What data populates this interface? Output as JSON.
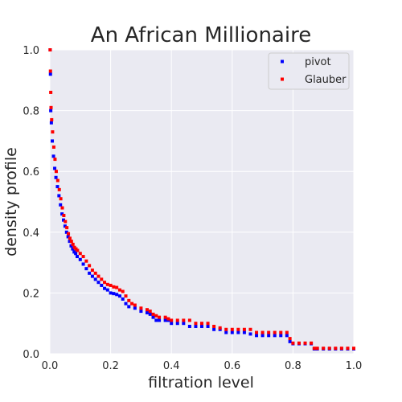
{
  "chart_data": {
    "type": "scatter",
    "title": "An African Millionaire",
    "xlabel": "filtration level",
    "ylabel": "density profile",
    "xlim": [
      0.0,
      1.0
    ],
    "ylim": [
      0.0,
      1.0
    ],
    "xticks": [
      "0.0",
      "0.2",
      "0.4",
      "0.6",
      "0.8",
      "1.0"
    ],
    "yticks": [
      "0.0",
      "0.2",
      "0.4",
      "0.6",
      "0.8",
      "1.0"
    ],
    "grid": true,
    "legend_position": "top-right",
    "colors": {
      "background": "#eaeaf2",
      "grid": "#ffffff"
    },
    "series": [
      {
        "name": "pivot",
        "color": "#0000ff",
        "points": [
          [
            0.001,
            1.0
          ],
          [
            0.002,
            0.92
          ],
          [
            0.003,
            0.8
          ],
          [
            0.005,
            0.76
          ],
          [
            0.008,
            0.7
          ],
          [
            0.012,
            0.65
          ],
          [
            0.016,
            0.61
          ],
          [
            0.02,
            0.58
          ],
          [
            0.025,
            0.55
          ],
          [
            0.03,
            0.52
          ],
          [
            0.035,
            0.49
          ],
          [
            0.04,
            0.46
          ],
          [
            0.045,
            0.44
          ],
          [
            0.05,
            0.42
          ],
          [
            0.055,
            0.4
          ],
          [
            0.06,
            0.385
          ],
          [
            0.065,
            0.37
          ],
          [
            0.07,
            0.355
          ],
          [
            0.075,
            0.345
          ],
          [
            0.08,
            0.335
          ],
          [
            0.085,
            0.33
          ],
          [
            0.09,
            0.32
          ],
          [
            0.1,
            0.31
          ],
          [
            0.11,
            0.295
          ],
          [
            0.12,
            0.28
          ],
          [
            0.13,
            0.265
          ],
          [
            0.14,
            0.255
          ],
          [
            0.15,
            0.245
          ],
          [
            0.16,
            0.235
          ],
          [
            0.17,
            0.225
          ],
          [
            0.18,
            0.215
          ],
          [
            0.19,
            0.21
          ],
          [
            0.2,
            0.2
          ],
          [
            0.21,
            0.198
          ],
          [
            0.22,
            0.195
          ],
          [
            0.23,
            0.19
          ],
          [
            0.24,
            0.18
          ],
          [
            0.25,
            0.165
          ],
          [
            0.26,
            0.155
          ],
          [
            0.28,
            0.15
          ],
          [
            0.3,
            0.14
          ],
          [
            0.32,
            0.135
          ],
          [
            0.33,
            0.13
          ],
          [
            0.34,
            0.12
          ],
          [
            0.35,
            0.11
          ],
          [
            0.36,
            0.11
          ],
          [
            0.38,
            0.11
          ],
          [
            0.39,
            0.11
          ],
          [
            0.4,
            0.1
          ],
          [
            0.42,
            0.1
          ],
          [
            0.44,
            0.1
          ],
          [
            0.46,
            0.09
          ],
          [
            0.48,
            0.09
          ],
          [
            0.5,
            0.09
          ],
          [
            0.52,
            0.09
          ],
          [
            0.54,
            0.08
          ],
          [
            0.56,
            0.08
          ],
          [
            0.58,
            0.07
          ],
          [
            0.6,
            0.07
          ],
          [
            0.62,
            0.07
          ],
          [
            0.64,
            0.07
          ],
          [
            0.66,
            0.065
          ],
          [
            0.68,
            0.06
          ],
          [
            0.7,
            0.06
          ],
          [
            0.72,
            0.06
          ],
          [
            0.74,
            0.06
          ],
          [
            0.76,
            0.06
          ],
          [
            0.78,
            0.06
          ],
          [
            0.79,
            0.04
          ],
          [
            0.8,
            0.033
          ],
          [
            0.82,
            0.033
          ],
          [
            0.84,
            0.033
          ],
          [
            0.86,
            0.033
          ],
          [
            0.87,
            0.016
          ],
          [
            0.88,
            0.016
          ],
          [
            0.9,
            0.016
          ],
          [
            0.92,
            0.016
          ],
          [
            0.94,
            0.016
          ],
          [
            0.96,
            0.016
          ],
          [
            0.98,
            0.016
          ],
          [
            1.0,
            0.016
          ]
        ]
      },
      {
        "name": "Glauber",
        "color": "#ff0000",
        "points": [
          [
            0.001,
            1.0
          ],
          [
            0.002,
            0.93
          ],
          [
            0.003,
            0.86
          ],
          [
            0.004,
            0.81
          ],
          [
            0.006,
            0.77
          ],
          [
            0.009,
            0.73
          ],
          [
            0.013,
            0.68
          ],
          [
            0.017,
            0.64
          ],
          [
            0.021,
            0.6
          ],
          [
            0.026,
            0.57
          ],
          [
            0.031,
            0.54
          ],
          [
            0.036,
            0.51
          ],
          [
            0.041,
            0.48
          ],
          [
            0.046,
            0.455
          ],
          [
            0.051,
            0.435
          ],
          [
            0.056,
            0.415
          ],
          [
            0.061,
            0.395
          ],
          [
            0.066,
            0.38
          ],
          [
            0.071,
            0.37
          ],
          [
            0.076,
            0.36
          ],
          [
            0.081,
            0.35
          ],
          [
            0.086,
            0.345
          ],
          [
            0.091,
            0.34
          ],
          [
            0.1,
            0.33
          ],
          [
            0.11,
            0.32
          ],
          [
            0.12,
            0.305
          ],
          [
            0.13,
            0.29
          ],
          [
            0.14,
            0.275
          ],
          [
            0.15,
            0.265
          ],
          [
            0.16,
            0.255
          ],
          [
            0.17,
            0.245
          ],
          [
            0.18,
            0.235
          ],
          [
            0.19,
            0.228
          ],
          [
            0.2,
            0.225
          ],
          [
            0.21,
            0.22
          ],
          [
            0.22,
            0.218
          ],
          [
            0.23,
            0.21
          ],
          [
            0.24,
            0.205
          ],
          [
            0.25,
            0.19
          ],
          [
            0.26,
            0.175
          ],
          [
            0.27,
            0.165
          ],
          [
            0.28,
            0.16
          ],
          [
            0.3,
            0.15
          ],
          [
            0.32,
            0.145
          ],
          [
            0.33,
            0.14
          ],
          [
            0.34,
            0.13
          ],
          [
            0.35,
            0.125
          ],
          [
            0.36,
            0.12
          ],
          [
            0.38,
            0.12
          ],
          [
            0.39,
            0.115
          ],
          [
            0.4,
            0.11
          ],
          [
            0.42,
            0.11
          ],
          [
            0.44,
            0.11
          ],
          [
            0.46,
            0.11
          ],
          [
            0.48,
            0.1
          ],
          [
            0.5,
            0.1
          ],
          [
            0.52,
            0.1
          ],
          [
            0.54,
            0.09
          ],
          [
            0.56,
            0.085
          ],
          [
            0.58,
            0.08
          ],
          [
            0.6,
            0.08
          ],
          [
            0.62,
            0.08
          ],
          [
            0.64,
            0.08
          ],
          [
            0.66,
            0.08
          ],
          [
            0.68,
            0.07
          ],
          [
            0.7,
            0.07
          ],
          [
            0.72,
            0.07
          ],
          [
            0.74,
            0.07
          ],
          [
            0.76,
            0.07
          ],
          [
            0.78,
            0.07
          ],
          [
            0.79,
            0.05
          ],
          [
            0.8,
            0.035
          ],
          [
            0.82,
            0.035
          ],
          [
            0.84,
            0.035
          ],
          [
            0.86,
            0.035
          ],
          [
            0.87,
            0.018
          ],
          [
            0.88,
            0.018
          ],
          [
            0.9,
            0.018
          ],
          [
            0.92,
            0.018
          ],
          [
            0.94,
            0.018
          ],
          [
            0.96,
            0.018
          ],
          [
            0.98,
            0.018
          ],
          [
            1.0,
            0.018
          ]
        ]
      }
    ]
  }
}
